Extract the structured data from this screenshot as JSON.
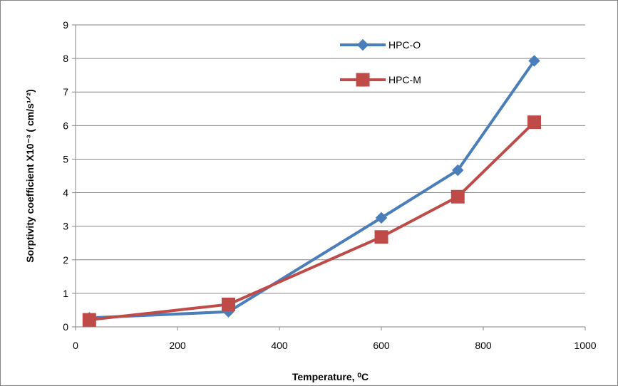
{
  "chart_data": {
    "type": "line",
    "xlabel": "Temperature, ⁰C",
    "ylabel": "Sorptivity coefficient X10⁻³ ( cm/s¹ᐟ²)",
    "xlim": [
      0,
      1000
    ],
    "ylim": [
      0,
      9
    ],
    "x_ticks": [
      0,
      200,
      400,
      600,
      800,
      1000
    ],
    "y_ticks": [
      0,
      1,
      2,
      3,
      4,
      5,
      6,
      7,
      8,
      9
    ],
    "grid": "horizontal",
    "legend_position": "top-right",
    "series": [
      {
        "name": "HPC-O",
        "marker": "diamond",
        "color": "#4A7EBB",
        "x": [
          27,
          300,
          600,
          750,
          900
        ],
        "y": [
          0.27,
          0.45,
          3.25,
          4.67,
          7.93
        ]
      },
      {
        "name": "HPC-M",
        "marker": "square",
        "color": "#BE4B48",
        "x": [
          27,
          300,
          600,
          750,
          900
        ],
        "y": [
          0.21,
          0.67,
          2.68,
          3.88,
          6.1
        ]
      }
    ]
  }
}
